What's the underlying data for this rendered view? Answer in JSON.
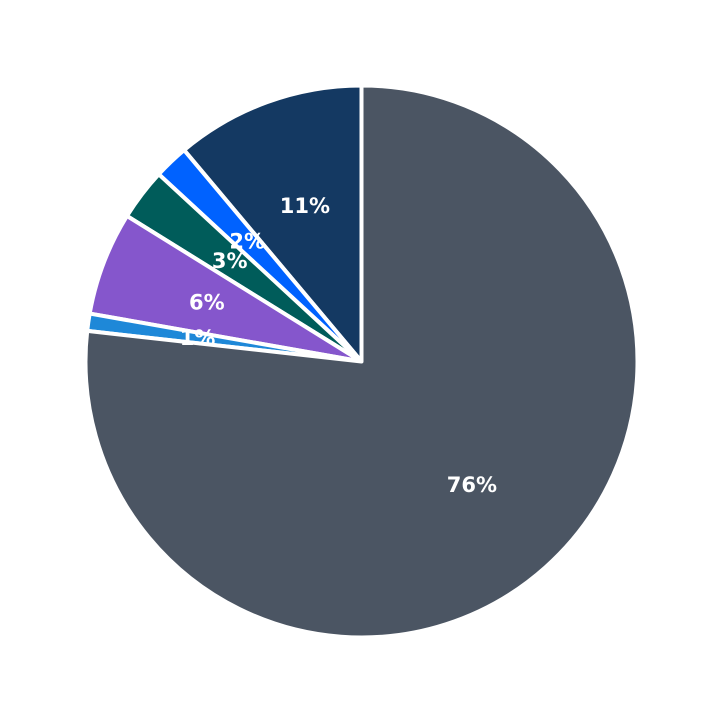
{
  "chart_data": {
    "type": "pie",
    "title": "",
    "start_angle_deg": 90,
    "direction": "counterclockwise",
    "slices": [
      {
        "label": "11%",
        "value": 11,
        "color": "#143962"
      },
      {
        "label": "2%",
        "value": 2,
        "color": "#0062ff"
      },
      {
        "label": "3%",
        "value": 3,
        "color": "#005c5a"
      },
      {
        "label": "6%",
        "value": 6,
        "color": "#8556cc"
      },
      {
        "label": "1%",
        "value": 1,
        "color": "#1e88d8"
      },
      {
        "label": "76%",
        "value": 76,
        "color": "#4b5563"
      }
    ]
  }
}
